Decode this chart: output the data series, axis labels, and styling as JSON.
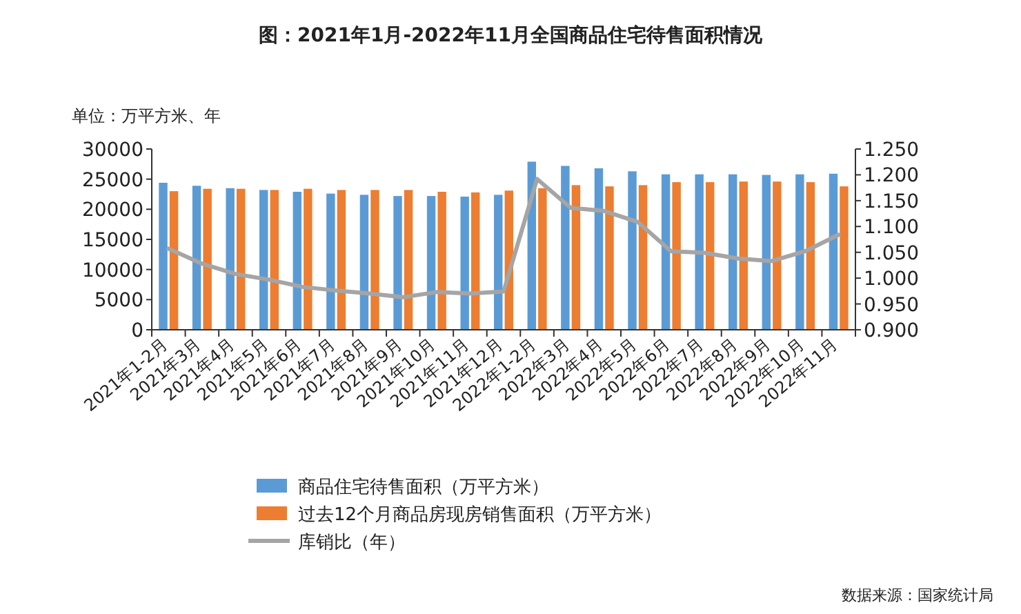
{
  "chart_data": {
    "type": "bar",
    "title": "图：2021年1月-2022年11月全国商品住宅待售面积情况",
    "ylabel": "单位：万平方米、年",
    "categories": [
      "2021年1-2月",
      "2021年3月",
      "2021年4月",
      "2021年5月",
      "2021年6月",
      "2021年7月",
      "2021年8月",
      "2021年9月",
      "2021年10月",
      "2021年11月",
      "2021年12月",
      "2022年1-2月",
      "2022年3月",
      "2022年4月",
      "2022年5月",
      "2022年6月",
      "2022年7月",
      "2022年8月",
      "2022年9月",
      "2022年10月",
      "2022年11月"
    ],
    "series": [
      {
        "name": "商品住宅待售面积（万平方米）",
        "color": "#5b9bd5",
        "values": [
          24400,
          23900,
          23500,
          23200,
          22900,
          22600,
          22400,
          22200,
          22200,
          22100,
          22400,
          27900,
          27200,
          26800,
          26300,
          25800,
          25800,
          25800,
          25700,
          25800,
          25900
        ]
      },
      {
        "name": "过去12个月商品房现房销售面积（万平方米）",
        "color": "#ed7d31",
        "values": [
          23000,
          23400,
          23400,
          23200,
          23400,
          23200,
          23200,
          23200,
          22900,
          22800,
          23100,
          23500,
          24000,
          23800,
          24000,
          24500,
          24500,
          24600,
          24600,
          24500,
          23800
        ]
      },
      {
        "name": "库销比（年）",
        "color": "#a5a5a5",
        "type": "line",
        "axis": "y2",
        "values": [
          1.057,
          1.028,
          1.008,
          0.997,
          0.983,
          0.976,
          0.97,
          0.963,
          0.973,
          0.97,
          0.974,
          1.192,
          1.136,
          1.13,
          1.109,
          1.052,
          1.049,
          1.038,
          1.033,
          1.052,
          1.084
        ]
      }
    ],
    "ylim": [
      0,
      30000
    ],
    "yticks": [
      0,
      5000,
      10000,
      15000,
      20000,
      25000,
      30000
    ],
    "y2lim": [
      0.9,
      1.25
    ],
    "y2ticks": [
      {
        "value": 0.9,
        "label": "0.900"
      },
      {
        "value": 0.95,
        "label": "0.950"
      },
      {
        "value": 1.0,
        "label": "1.000"
      },
      {
        "value": 1.05,
        "label": "1.050"
      },
      {
        "value": 1.1,
        "label": "1.100"
      },
      {
        "value": 1.15,
        "label": "1.150"
      },
      {
        "value": 1.2,
        "label": "1.200"
      },
      {
        "value": 1.25,
        "label": "1.250"
      }
    ],
    "legend": "bottom",
    "grid": false,
    "annotations": [
      "数据来源：国家统计局"
    ]
  }
}
